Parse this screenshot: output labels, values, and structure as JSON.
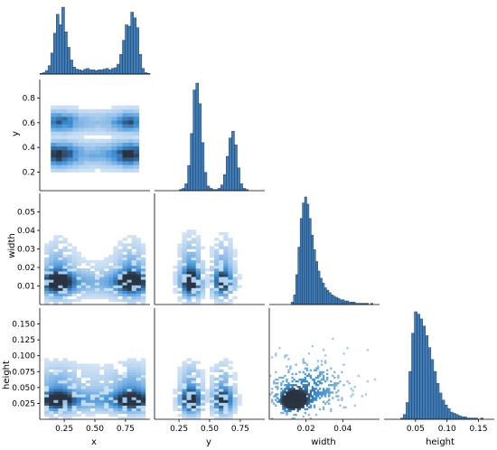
{
  "chart_data": {
    "type": "pairplot",
    "layout": "corner",
    "variables": [
      "x",
      "y",
      "width",
      "height"
    ],
    "colors": {
      "bar": "#3f7cb5",
      "bar_edge": "#1f3f66",
      "cmap_light": "#dce9f7",
      "cmap_mid": "#3b8fd8",
      "cmap_dark": "#2a3340"
    },
    "axes": {
      "x": {
        "label": "x",
        "range": [
          0.05,
          0.95
        ],
        "ticks": [
          0.25,
          0.5,
          0.75
        ],
        "tick_labels": [
          "0.25",
          "0.50",
          "0.75"
        ]
      },
      "y": {
        "label": "y",
        "range": [
          0.05,
          0.95
        ],
        "ticks": [
          0.2,
          0.4,
          0.6,
          0.8
        ],
        "tick_labels": [
          "0.2",
          "0.4",
          "0.6",
          "0.8"
        ],
        "x_tick_labels": [
          "0.25",
          "0.50",
          "0.75"
        ],
        "x_ticks": [
          0.25,
          0.5,
          0.75
        ]
      },
      "width": {
        "label": "width",
        "range": [
          0.0,
          0.06
        ],
        "ticks": [
          0.01,
          0.02,
          0.03,
          0.04,
          0.05
        ],
        "tick_labels": [
          "0.01",
          "0.02",
          "0.03",
          "0.04",
          "0.05"
        ],
        "x_ticks": [
          0.02,
          0.04
        ],
        "x_tick_labels": [
          "0.02",
          "0.04"
        ]
      },
      "height": {
        "label": "height",
        "range": [
          0.0,
          0.175
        ],
        "ticks": [
          0.025,
          0.05,
          0.075,
          0.1,
          0.125,
          0.15
        ],
        "tick_labels": [
          "0.025",
          "0.050",
          "0.075",
          "0.100",
          "0.125",
          "0.150"
        ],
        "x_ticks": [
          0.05,
          0.1,
          0.15
        ],
        "x_tick_labels": [
          "0.05",
          "0.10",
          "0.15"
        ]
      }
    },
    "diagonal_histograms": {
      "x": {
        "bin_edges_range": [
          0.05,
          0.95
        ],
        "counts": [
          1,
          2,
          5,
          12,
          30,
          58,
          85,
          70,
          95,
          60,
          38,
          20,
          10,
          7,
          6,
          5,
          7,
          8,
          6,
          6,
          5,
          6,
          6,
          7,
          8,
          6,
          8,
          9,
          14,
          28,
          48,
          70,
          68,
          88,
          80,
          66,
          28,
          8,
          2,
          1
        ]
      },
      "y": {
        "bin_edges_range": [
          0.05,
          0.95
        ],
        "counts": [
          0,
          0,
          0,
          0,
          0,
          0,
          0,
          0,
          0,
          1,
          2,
          6,
          22,
          50,
          88,
          94,
          76,
          42,
          16,
          4,
          2,
          1,
          1,
          2,
          5,
          14,
          30,
          46,
          52,
          40,
          20,
          6,
          2,
          1,
          0,
          0,
          0,
          0,
          0,
          0
        ]
      },
      "width": {
        "bin_edges_range": [
          0.0,
          0.06
        ],
        "counts": [
          0,
          0,
          0,
          0,
          0,
          0,
          0,
          0,
          0,
          0,
          2,
          8,
          25,
          48,
          72,
          85,
          90,
          84,
          72,
          58,
          46,
          36,
          28,
          22,
          18,
          14,
          12,
          10,
          8,
          7,
          6,
          5,
          4,
          4,
          3,
          3,
          2,
          2,
          2,
          1,
          1,
          1,
          1,
          1,
          1,
          0,
          1,
          0,
          0,
          0
        ]
      },
      "height": {
        "bin_edges_range": [
          0.0,
          0.175
        ],
        "counts": [
          0,
          0,
          0,
          0,
          0,
          0,
          1,
          4,
          14,
          40,
          72,
          90,
          88,
          84,
          78,
          70,
          60,
          50,
          40,
          30,
          22,
          16,
          12,
          9,
          6,
          5,
          4,
          3,
          2,
          2,
          1,
          1,
          1,
          1,
          0,
          1,
          0,
          0,
          0,
          0
        ]
      }
    },
    "bivariate_histograms": [
      {
        "x": "x",
        "y": "y",
        "description": "two horizontal bands at y≈0.35 and y≈0.65, densest near x≈0.2 and x≈0.8"
      },
      {
        "x": "x",
        "y": "width"
      },
      {
        "x": "y",
        "y": "width"
      },
      {
        "x": "x",
        "y": "height"
      },
      {
        "x": "y",
        "y": "height"
      },
      {
        "x": "width",
        "y": "height"
      }
    ]
  }
}
